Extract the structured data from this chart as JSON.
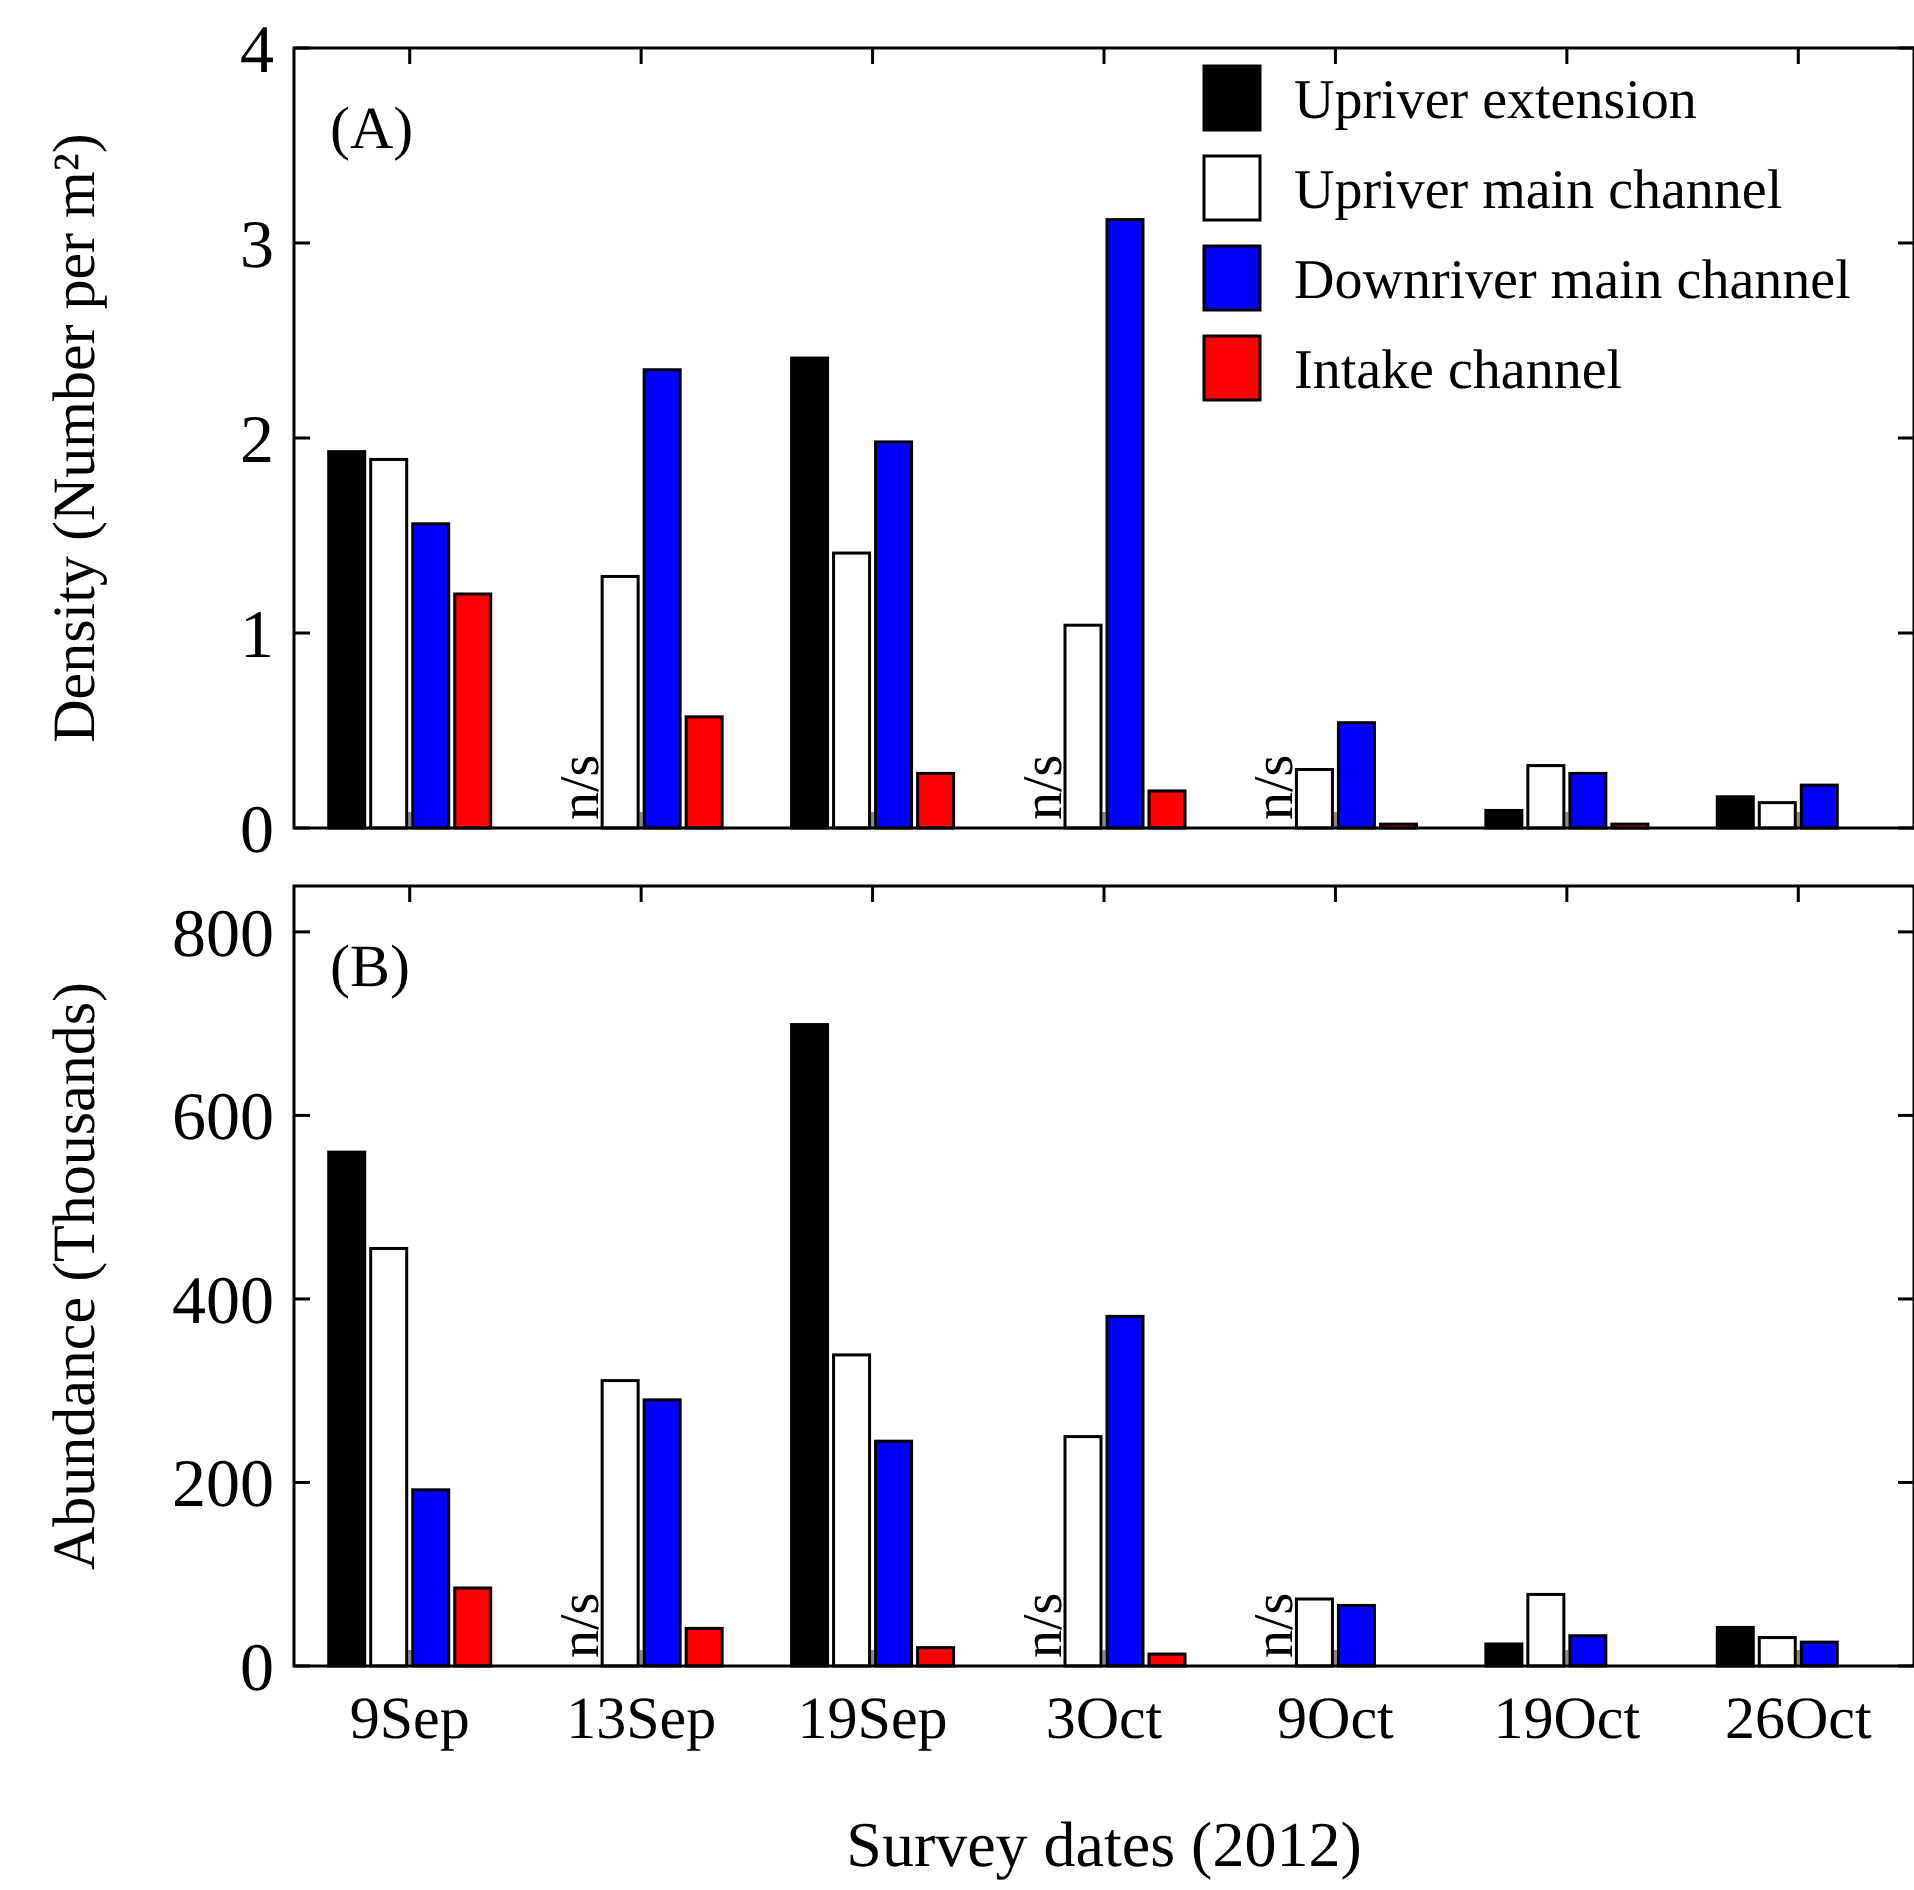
{
  "chart_data": [
    {
      "type": "bar",
      "ylabel": "Density (Number per m²)",
      "categories": [
        "9Sep",
        "13Sep",
        "19Sep",
        "3Oct",
        "9Oct",
        "19Oct",
        "26Oct"
      ],
      "ylim": [
        0,
        4
      ],
      "yticks": [
        0,
        1,
        2,
        3,
        4
      ],
      "tick_labels": "y",
      "legend": "top right",
      "series": [
        {
          "name": "Upriver extension",
          "color": "#000000",
          "values": [
            1.93,
            null,
            2.41,
            null,
            null,
            0.09,
            0.16
          ]
        },
        {
          "name": "Upriver main channel",
          "color": "#ffffff",
          "values": [
            1.89,
            1.29,
            1.41,
            1.04,
            0.3,
            0.32,
            0.13
          ]
        },
        {
          "name": "Downriver main channel",
          "color": "#0000ff",
          "values": [
            1.56,
            2.35,
            1.98,
            3.12,
            0.54,
            0.28,
            0.22
          ]
        },
        {
          "name": "Intake channel",
          "color": "#ff0000",
          "values": [
            1.2,
            0.57,
            0.28,
            0.19,
            0.02,
            0.02,
            null
          ]
        }
      ],
      "annotations": [
        "(A)",
        {
          "text": "n/s",
          "x": "13Sep",
          "y": 0
        },
        {
          "text": "n/s",
          "x": "3Oct",
          "y": 0
        },
        {
          "text": "n/s",
          "x": "9Oct",
          "y": 0
        }
      ]
    },
    {
      "type": "bar",
      "ylabel": "Abundance (Thousands)",
      "xlabel": "Survey dates (2012)",
      "categories": [
        "9Sep",
        "13Sep",
        "19Sep",
        "3Oct",
        "9Oct",
        "19Oct",
        "26Oct"
      ],
      "ylim": [
        0,
        850
      ],
      "yticks": [
        0,
        200,
        400,
        600,
        800
      ],
      "series": [
        {
          "color": "#000000",
          "values": [
            560,
            null,
            699,
            null,
            null,
            24,
            42
          ]
        },
        {
          "color": "#ffffff",
          "values": [
            455,
            311,
            339,
            250,
            73,
            78,
            31
          ]
        },
        {
          "color": "#0000ff",
          "values": [
            192,
            290,
            245,
            381,
            66,
            33,
            26
          ]
        },
        {
          "color": "#ff0000",
          "values": [
            85,
            41,
            20,
            13,
            null,
            null,
            null
          ]
        }
      ],
      "annotations": [
        "(B)",
        {
          "text": "n/s",
          "x": "13Sep",
          "y": 0
        },
        {
          "text": "n/s",
          "x": "3Oct",
          "y": 0
        },
        {
          "text": "n/s",
          "x": "9Oct",
          "y": 0
        }
      ]
    }
  ]
}
